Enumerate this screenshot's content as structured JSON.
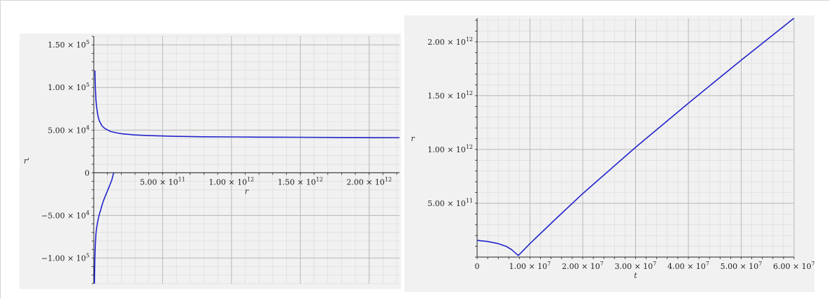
{
  "colors": {
    "curve": "#2222cc",
    "grid_major": "#b8b8b8",
    "grid_minor": "#dcdcdc",
    "axis": "#222222",
    "panel": "#f1f1f1"
  },
  "chart_data": [
    {
      "type": "line",
      "xlabel": "r",
      "ylabel": "r'",
      "xlim": [
        0,
        2220000000000.0
      ],
      "ylim": [
        -130000,
        160000
      ],
      "grid": true,
      "x_ticks": [
        {
          "value": 500000000000.0,
          "mant": "5.00 × 10",
          "exp": "11"
        },
        {
          "value": 1000000000000.0,
          "mant": "1.00 × 10",
          "exp": "12"
        },
        {
          "value": 1500000000000.0,
          "mant": "1.50 × 10",
          "exp": "12"
        },
        {
          "value": 2000000000000.0,
          "mant": "2.00 × 10",
          "exp": "12"
        }
      ],
      "y_ticks": [
        {
          "value": 150000,
          "mant": "1.50 × 10",
          "exp": "5"
        },
        {
          "value": 100000,
          "mant": "1.00 × 10",
          "exp": "5"
        },
        {
          "value": 50000,
          "mant": "5.00 × 10",
          "exp": "4"
        },
        {
          "value": 0,
          "mant": "0",
          "exp": ""
        },
        {
          "value": -50000,
          "mant": "−5.00 × 10",
          "exp": "4"
        },
        {
          "value": -100000,
          "mant": "−1.00 × 10",
          "exp": "5"
        }
      ],
      "series": [
        {
          "x": [
            8000000000.0,
            12000000000.0,
            16000000000.0,
            20000000000.0,
            30000000000.0,
            40000000000.0,
            60000000000.0,
            80000000000.0,
            120000000000.0,
            160000000000.0,
            200000000000.0,
            300000000000.0,
            400000000000.0,
            600000000000.0,
            800000000000.0,
            1000000000000.0,
            1200000000000.0,
            1500000000000.0,
            1800000000000.0,
            2000000000000.0,
            2220000000000.0
          ],
          "y": [
            120000,
            98000,
            86000,
            78500,
            67000,
            61000,
            55000,
            52000,
            48500,
            47000,
            45800,
            44300,
            43600,
            42700,
            42200,
            42000,
            41800,
            41600,
            41400,
            41300,
            41200
          ]
        },
        {
          "x": [
            5000000000.0,
            6000000000.0,
            8000000000.0,
            12000000000.0,
            16000000000.0,
            20000000000.0,
            30000000000.0,
            40000000000.0,
            50000000000.0,
            60000000000.0,
            70000000000.0,
            80000000000.0,
            90000000000.0,
            100000000000.0,
            110000000000.0,
            130000000000.0,
            145000000000.0
          ],
          "y": [
            -130000,
            -120000,
            -100000,
            -82000,
            -72000,
            -66000,
            -56000,
            -49000,
            -44000,
            -38000,
            -33000,
            -29000,
            -25000,
            -21000,
            -17000,
            -9000,
            0
          ]
        }
      ]
    },
    {
      "type": "line",
      "xlabel": "t",
      "ylabel": "r",
      "xlim": [
        0,
        60000000.0
      ],
      "ylim": [
        0,
        2220000000000.0
      ],
      "grid": true,
      "x_ticks": [
        {
          "value": 0,
          "mant": "0",
          "exp": ""
        },
        {
          "value": 10000000.0,
          "mant": "1.00 × 10",
          "exp": "7"
        },
        {
          "value": 20000000.0,
          "mant": "2.00 × 10",
          "exp": "7"
        },
        {
          "value": 30000000.0,
          "mant": "3.00 × 10",
          "exp": "7"
        },
        {
          "value": 40000000.0,
          "mant": "4.00 × 10",
          "exp": "7"
        },
        {
          "value": 50000000.0,
          "mant": "5.00 × 10",
          "exp": "7"
        },
        {
          "value": 60000000.0,
          "mant": "6.00 × 10",
          "exp": "7"
        }
      ],
      "y_ticks": [
        {
          "value": 500000000000.0,
          "mant": "5.00 × 10",
          "exp": "11"
        },
        {
          "value": 1000000000000.0,
          "mant": "1.00 × 10",
          "exp": "12"
        },
        {
          "value": 1500000000000.0,
          "mant": "1.50 × 10",
          "exp": "12"
        },
        {
          "value": 2000000000000.0,
          "mant": "2.00 × 10",
          "exp": "12"
        }
      ],
      "series": [
        {
          "x": [
            0,
            2000000.0,
            4000000.0,
            5500000.0,
            6500000.0,
            7200000.0,
            7800000.0,
            8500000.0,
            10000000.0,
            15000000.0,
            20000000.0,
            30000000.0,
            40000000.0,
            50000000.0,
            60000000.0
          ],
          "y": [
            155000000000.0,
            145000000000.0,
            125000000000.0,
            100000000000.0,
            70000000000.0,
            40000000000.0,
            15000000000.0,
            50000000000.0,
            125000000000.0,
            360000000000.0,
            590000000000.0,
            1020000000000.0,
            1430000000000.0,
            1830000000000.0,
            2220000000000.0
          ]
        }
      ]
    }
  ]
}
